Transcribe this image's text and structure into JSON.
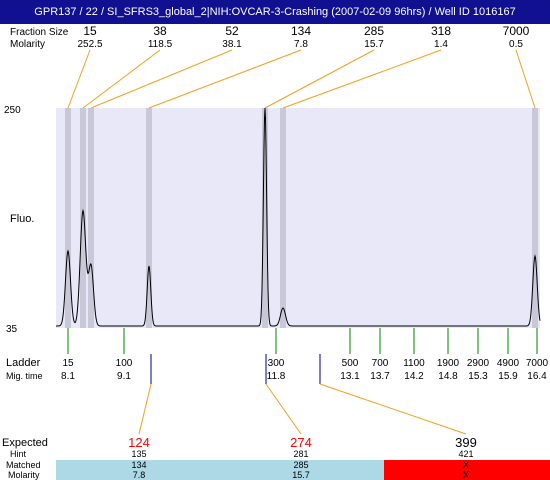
{
  "window": {
    "title": "GPR137 / 22 / SI_SFRS3_global_2|NIH:OVCAR-3-Crashing (2007-02-09 96hrs) / Well ID 1016167"
  },
  "labels": {
    "fraction_size": "Fraction Size",
    "molarity": "Molarity",
    "fluo": "Fluo.",
    "ladder": "Ladder",
    "mig_time": "Mig. time",
    "expected": "Expected",
    "hint": "Hint",
    "matched": "Matched",
    "molarity_bottom": "Molarity"
  },
  "y_axis": {
    "top_label": "250",
    "bottom_label": "35",
    "min": 35,
    "max": 250
  },
  "fractions": [
    {
      "size": "15",
      "molarity": "252.5"
    },
    {
      "size": "38",
      "molarity": "118.5"
    },
    {
      "size": "52",
      "molarity": "38.1"
    },
    {
      "size": "134",
      "molarity": "7.8"
    },
    {
      "size": "285",
      "molarity": "15.7"
    },
    {
      "size": "318",
      "molarity": "1.4"
    },
    {
      "size": "7000",
      "molarity": "0.5"
    }
  ],
  "ladder": [
    {
      "size": "15",
      "time": "8.1"
    },
    {
      "size": "100",
      "time": "9.1"
    },
    {
      "size": "300",
      "time": "11.8"
    },
    {
      "size": "500",
      "time": "13.1"
    },
    {
      "size": "700",
      "time": "13.7"
    },
    {
      "size": "1100",
      "time": "14.2"
    },
    {
      "size": "1900",
      "time": "14.8"
    },
    {
      "size": "2900",
      "time": "15.3"
    },
    {
      "size": "4900",
      "time": "15.9"
    },
    {
      "size": "7000",
      "time": "16.4"
    }
  ],
  "expected": [
    {
      "value": "124",
      "hint": "135",
      "matched": "134",
      "molarity": "7.8",
      "color": "#ff0000",
      "status": "matched"
    },
    {
      "value": "274",
      "hint": "281",
      "matched": "285",
      "molarity": "15.7",
      "color": "#ff0000",
      "status": "matched"
    },
    {
      "value": "399",
      "hint": "421",
      "matched": "X",
      "molarity": "X",
      "color": "#000000",
      "status": "missing"
    }
  ],
  "colors": {
    "title_bg": "#101090",
    "plot_bg": "#e8e8f8",
    "band": "#c8c8d8",
    "leader": "#f0a020",
    "ladder_tick": "#008000",
    "matched_bg": "#add8e6",
    "missing_bg": "#ff0000"
  }
}
